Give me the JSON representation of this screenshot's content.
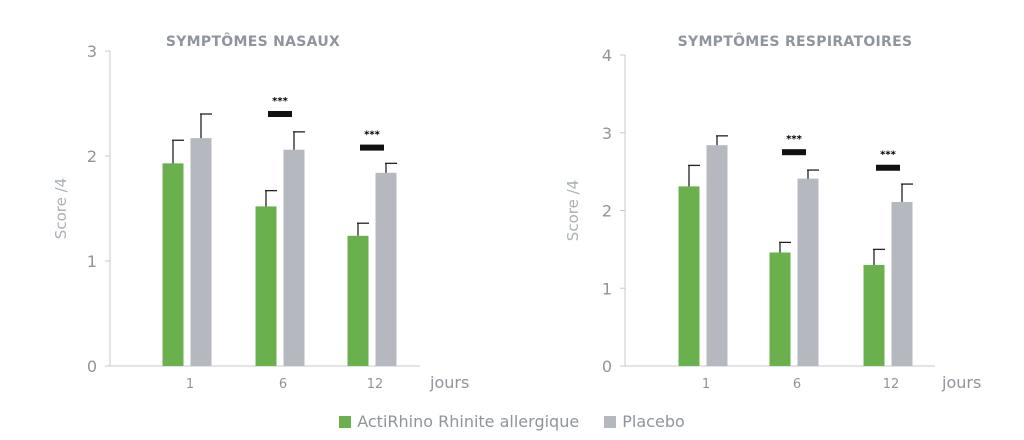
{
  "chart_data": [
    {
      "type": "bar",
      "title": "SYMPTÔMES NASAUX",
      "ylabel": "Score /4",
      "xlabel": "jours",
      "categories": [
        "1",
        "6",
        "12"
      ],
      "ylim": [
        0,
        3
      ],
      "yticks": [
        "0",
        "1",
        "2",
        "3"
      ],
      "series": [
        {
          "name": "ActiRhino Rhinite allergique",
          "color": "#6ab04c",
          "values": [
            1.93,
            1.52,
            1.24
          ],
          "errors": [
            0.22,
            0.15,
            0.12
          ]
        },
        {
          "name": "Placebo",
          "color": "#b5b9bf",
          "values": [
            2.17,
            2.06,
            1.84
          ],
          "errors": [
            0.23,
            0.17,
            0.09
          ]
        }
      ],
      "significance": [
        {
          "category": "6",
          "label": "***",
          "level": 2.4
        },
        {
          "category": "12",
          "label": "***",
          "level": 2.08
        }
      ]
    },
    {
      "type": "bar",
      "title": "SYMPTÔMES RESPIRATOIRES",
      "ylabel": "Score /4",
      "xlabel": "jours",
      "categories": [
        "1",
        "6",
        "12"
      ],
      "ylim": [
        0,
        4
      ],
      "yticks": [
        "0",
        "1",
        "2",
        "3",
        "4"
      ],
      "series": [
        {
          "name": "ActiRhino Rhinite allergique",
          "color": "#6ab04c",
          "values": [
            2.31,
            1.46,
            1.3
          ],
          "errors": [
            0.27,
            0.13,
            0.2
          ]
        },
        {
          "name": "Placebo",
          "color": "#b5b9bf",
          "values": [
            2.84,
            2.41,
            2.11
          ],
          "errors": [
            0.12,
            0.11,
            0.23
          ]
        }
      ],
      "significance": [
        {
          "category": "6",
          "label": "***",
          "level": 2.75
        },
        {
          "category": "12",
          "label": "***",
          "level": 2.55
        }
      ]
    }
  ],
  "legend": [
    {
      "label": "ActiRhino Rhinite allergique",
      "color": "#6ab04c"
    },
    {
      "label": "Placebo",
      "color": "#b5b9bf"
    }
  ]
}
